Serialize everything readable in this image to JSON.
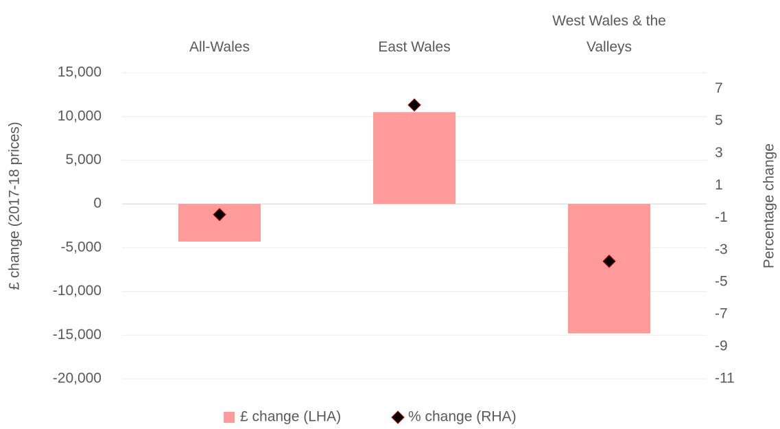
{
  "chart_data": {
    "type": "bar_scatter_dual",
    "categories": [
      "All-Wales",
      "East Wales",
      "West Wales & the Valleys"
    ],
    "series": [
      {
        "name": "£ change (LHA)",
        "color": "#ff9b9b",
        "values": [
          -4300,
          10500,
          -14800
        ]
      },
      {
        "name": "% change (RHA)",
        "color": "#000000",
        "axis": "y2",
        "values": [
          -0.8,
          6.0,
          -3.7
        ]
      }
    ],
    "ylabel": "£ change (2017-18 prices)",
    "y2label": "Percentage change",
    "ylim": [
      -20000,
      15000
    ],
    "yticks": [
      {
        "value": -20000,
        "label": "-20,000"
      },
      {
        "value": -15000,
        "label": "-15,000"
      },
      {
        "value": -10000,
        "label": "-10,000"
      },
      {
        "value": -5000,
        "label": "-5,000"
      },
      0,
      {
        "value": 5000,
        "label": "5,000"
      },
      {
        "value": 10000,
        "label": "10,000"
      },
      {
        "value": 15000,
        "label": "15,000"
      }
    ],
    "y2lim": [
      -11,
      8
    ],
    "y2ticks": [
      -11,
      -9,
      -7,
      -5,
      -3,
      -1,
      1,
      3,
      5,
      7
    ],
    "grid": true,
    "legend": "bottom"
  }
}
